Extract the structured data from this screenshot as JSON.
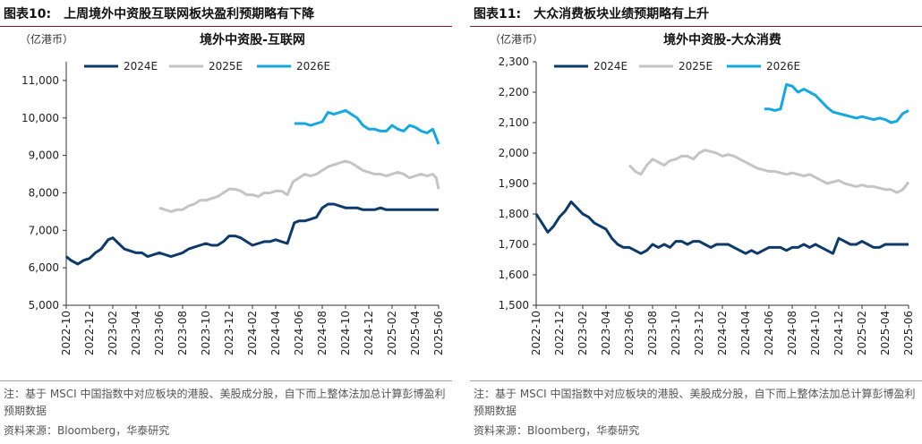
{
  "colors": {
    "s2024": "#0d3a6b",
    "s2025": "#c4c4c4",
    "s2026": "#14a8e0",
    "axis": "#333333"
  },
  "charts": [
    {
      "id": "left",
      "figure_number": "图表10:",
      "figure_title": "上周境外中资股互联网板块盈利预期略有下降",
      "note": "注：基于 MSCI 中国指数中对应板块的港股、美股成分股，自下而上整体法加总计算彭博盈利预期数据",
      "source": "资料来源：Bloomberg，华泰研究",
      "chart_data": {
        "type": "line",
        "title": "境外中资股-互联网",
        "unit_label": "（亿港币）",
        "ylim": [
          5000,
          11500
        ],
        "yticks": [
          5000,
          6000,
          7000,
          8000,
          9000,
          10000,
          11000
        ],
        "ytick_labels": [
          "5,000",
          "6,000",
          "7,000",
          "8,000",
          "9,000",
          "10,000",
          "11,000"
        ],
        "x_range": [
          0,
          32
        ],
        "xticks": [
          0,
          2,
          4,
          6,
          8,
          10,
          12,
          14,
          16,
          18,
          20,
          22,
          24,
          26,
          28,
          30,
          32
        ],
        "xtick_labels": [
          "2022-10",
          "2022-12",
          "2023-02",
          "2023-04",
          "2023-06",
          "2023-08",
          "2023-10",
          "2023-12",
          "2024-02",
          "2024-04",
          "2024-06",
          "2024-08",
          "2024-10",
          "2024-12",
          "2025-02",
          "2025-04",
          "2025-06"
        ],
        "series": [
          {
            "name": "2024E",
            "key": "s2024",
            "width": 3,
            "x": [
              0,
              0.4,
              1.0,
              1.5,
              2.0,
              2.5,
              3.0,
              3.6,
              4.0,
              4.5,
              5.0,
              5.5,
              6.0,
              6.5,
              7.0,
              7.5,
              8.0,
              8.5,
              9.0,
              9.5,
              10.0,
              10.5,
              11.0,
              11.5,
              12.0,
              12.5,
              13.0,
              13.5,
              14.0,
              14.5,
              15.0,
              15.5,
              16.0,
              16.5,
              17.0,
              17.5,
              18.0,
              18.5,
              19.0,
              19.6,
              20.0,
              20.5,
              21.0,
              21.5,
              22.0,
              22.5,
              23.0,
              23.5,
              24.0,
              24.5,
              25.0,
              25.5,
              26.0,
              26.5,
              27.0,
              27.5,
              28.0,
              28.5,
              29.0,
              29.5,
              30.0,
              30.5,
              31.0,
              31.5,
              32.0
            ],
            "y": [
              6300,
              6200,
              6100,
              6200,
              6250,
              6400,
              6500,
              6750,
              6800,
              6650,
              6500,
              6450,
              6400,
              6400,
              6300,
              6350,
              6400,
              6350,
              6300,
              6350,
              6400,
              6500,
              6550,
              6600,
              6650,
              6600,
              6600,
              6700,
              6850,
              6850,
              6800,
              6700,
              6600,
              6650,
              6700,
              6700,
              6750,
              6700,
              6650,
              7200,
              7250,
              7250,
              7300,
              7350,
              7600,
              7700,
              7700,
              7650,
              7600,
              7600,
              7600,
              7550,
              7550,
              7550,
              7600,
              7550,
              7550,
              7550,
              7550,
              7550,
              7550,
              7550,
              7550,
              7550,
              7550
            ]
          },
          {
            "name": "2025E",
            "key": "s2025",
            "width": 3,
            "x": [
              8.0,
              8.5,
              9.0,
              9.5,
              10.0,
              10.5,
              11.0,
              11.5,
              12.0,
              12.5,
              13.0,
              13.5,
              14.0,
              14.5,
              15.0,
              15.5,
              16.0,
              16.5,
              17.0,
              17.5,
              18.0,
              18.5,
              19.0,
              19.5,
              20.0,
              20.5,
              21.0,
              21.5,
              22.0,
              22.5,
              23.0,
              23.5,
              24.0,
              24.5,
              25.0,
              25.5,
              26.0,
              26.5,
              27.0,
              27.5,
              28.0,
              28.5,
              29.0,
              29.5,
              30.0,
              30.5,
              31.0,
              31.5,
              31.8,
              32.0
            ],
            "y": [
              7600,
              7550,
              7500,
              7550,
              7550,
              7650,
              7700,
              7800,
              7800,
              7850,
              7900,
              8000,
              8100,
              8100,
              8050,
              7950,
              7950,
              7900,
              8000,
              8000,
              8050,
              8050,
              7950,
              8300,
              8400,
              8500,
              8450,
              8500,
              8600,
              8700,
              8750,
              8800,
              8850,
              8800,
              8700,
              8600,
              8550,
              8500,
              8500,
              8450,
              8500,
              8550,
              8500,
              8400,
              8450,
              8500,
              8450,
              8500,
              8400,
              8100
            ]
          },
          {
            "name": "2026E",
            "key": "s2026",
            "width": 3,
            "x": [
              19.6,
              20.0,
              20.5,
              21.0,
              21.5,
              22.0,
              22.5,
              23.0,
              23.5,
              24.0,
              24.5,
              25.0,
              25.5,
              26.0,
              26.5,
              27.0,
              27.5,
              28.0,
              28.5,
              29.0,
              29.5,
              30.0,
              30.5,
              31.0,
              31.5,
              32.0
            ],
            "y": [
              9850,
              9850,
              9850,
              9800,
              9850,
              9900,
              10150,
              10100,
              10150,
              10200,
              10100,
              10000,
              9800,
              9700,
              9700,
              9650,
              9650,
              9800,
              9700,
              9650,
              9800,
              9750,
              9650,
              9600,
              9700,
              9300
            ]
          }
        ]
      }
    },
    {
      "id": "right",
      "figure_number": "图表11:",
      "figure_title": "大众消费板块业绩预期略有上升",
      "note": "注：基于 MSCI 中国指数中对应板块的港股、美股成分股，自下而上整体法加总计算彭博盈利预期数据",
      "source": "资料来源：Bloomberg，华泰研究",
      "chart_data": {
        "type": "line",
        "title": "境外中资股-大众消费",
        "unit_label": "（亿港币）",
        "ylim": [
          1500,
          2300
        ],
        "yticks": [
          1500,
          1600,
          1700,
          1800,
          1900,
          2000,
          2100,
          2200,
          2300
        ],
        "ytick_labels": [
          "1,500",
          "1,600",
          "1,700",
          "1,800",
          "1,900",
          "2,000",
          "2,100",
          "2,200",
          "2,300"
        ],
        "x_range": [
          0,
          32
        ],
        "xticks": [
          0,
          2,
          4,
          6,
          8,
          10,
          12,
          14,
          16,
          18,
          20,
          22,
          24,
          26,
          28,
          30,
          32
        ],
        "xtick_labels": [
          "2022-10",
          "2022-12",
          "2023-02",
          "2023-04",
          "2023-06",
          "2023-08",
          "2023-10",
          "2023-12",
          "2024-02",
          "2024-04",
          "2024-06",
          "2024-08",
          "2024-10",
          "2024-12",
          "2025-02",
          "2025-04",
          "2025-06"
        ],
        "series": [
          {
            "name": "2024E",
            "key": "s2024",
            "width": 3,
            "x": [
              0,
              0.5,
              1.0,
              1.5,
              2.0,
              2.5,
              3.0,
              3.5,
              4.0,
              4.5,
              5.0,
              5.5,
              6.0,
              6.5,
              7.0,
              7.5,
              8.0,
              8.5,
              9.0,
              9.5,
              10.0,
              10.5,
              11.0,
              11.5,
              12.0,
              12.5,
              13.0,
              13.5,
              14.0,
              14.5,
              15.0,
              15.5,
              16.0,
              16.5,
              17.0,
              17.5,
              18.0,
              18.5,
              19.0,
              19.5,
              20.0,
              20.5,
              21.0,
              21.5,
              22.0,
              22.5,
              23.0,
              23.5,
              24.0,
              24.5,
              25.0,
              25.5,
              26.0,
              26.5,
              27.0,
              27.5,
              28.0,
              28.5,
              29.0,
              29.5,
              30.0,
              30.5,
              31.0,
              31.5,
              32.0
            ],
            "y": [
              1800,
              1770,
              1740,
              1760,
              1790,
              1810,
              1840,
              1820,
              1800,
              1790,
              1770,
              1760,
              1750,
              1720,
              1700,
              1690,
              1690,
              1680,
              1670,
              1680,
              1700,
              1690,
              1700,
              1690,
              1710,
              1710,
              1700,
              1710,
              1710,
              1700,
              1690,
              1700,
              1700,
              1700,
              1690,
              1680,
              1670,
              1680,
              1670,
              1680,
              1690,
              1690,
              1690,
              1680,
              1690,
              1690,
              1700,
              1690,
              1700,
              1690,
              1680,
              1670,
              1720,
              1710,
              1700,
              1700,
              1710,
              1700,
              1690,
              1690,
              1700,
              1700,
              1700,
              1700,
              1700
            ]
          },
          {
            "name": "2025E",
            "key": "s2025",
            "width": 3,
            "x": [
              8.0,
              8.5,
              9.0,
              9.5,
              10.0,
              10.5,
              11.0,
              11.5,
              12.0,
              12.5,
              13.0,
              13.5,
              14.0,
              14.5,
              15.0,
              15.5,
              16.0,
              16.5,
              17.0,
              17.5,
              18.0,
              18.5,
              19.0,
              19.5,
              20.0,
              20.5,
              21.0,
              21.5,
              22.0,
              22.5,
              23.0,
              23.5,
              24.0,
              24.5,
              25.0,
              25.5,
              26.0,
              26.5,
              27.0,
              27.5,
              28.0,
              28.5,
              29.0,
              29.5,
              30.0,
              30.5,
              31.0,
              31.5,
              32.0
            ],
            "y": [
              1960,
              1940,
              1930,
              1960,
              1980,
              1970,
              1960,
              1975,
              1980,
              1990,
              1990,
              1980,
              2000,
              2010,
              2005,
              2000,
              1990,
              1995,
              1990,
              1980,
              1970,
              1960,
              1950,
              1945,
              1940,
              1940,
              1935,
              1930,
              1935,
              1930,
              1925,
              1930,
              1920,
              1910,
              1900,
              1905,
              1910,
              1900,
              1895,
              1890,
              1895,
              1890,
              1890,
              1885,
              1880,
              1880,
              1870,
              1880,
              1905
            ]
          },
          {
            "name": "2026E",
            "key": "s2026",
            "width": 3,
            "x": [
              19.6,
              20.0,
              20.5,
              21.0,
              21.5,
              22.0,
              22.5,
              23.0,
              23.5,
              24.0,
              24.5,
              25.0,
              25.5,
              26.0,
              26.5,
              27.0,
              27.5,
              28.0,
              28.5,
              29.0,
              29.5,
              30.0,
              30.5,
              31.0,
              31.5,
              32.0
            ],
            "y": [
              2145,
              2145,
              2140,
              2145,
              2225,
              2220,
              2200,
              2210,
              2200,
              2190,
              2170,
              2150,
              2135,
              2130,
              2125,
              2120,
              2115,
              2120,
              2115,
              2110,
              2115,
              2110,
              2100,
              2105,
              2130,
              2140
            ]
          }
        ]
      }
    }
  ]
}
